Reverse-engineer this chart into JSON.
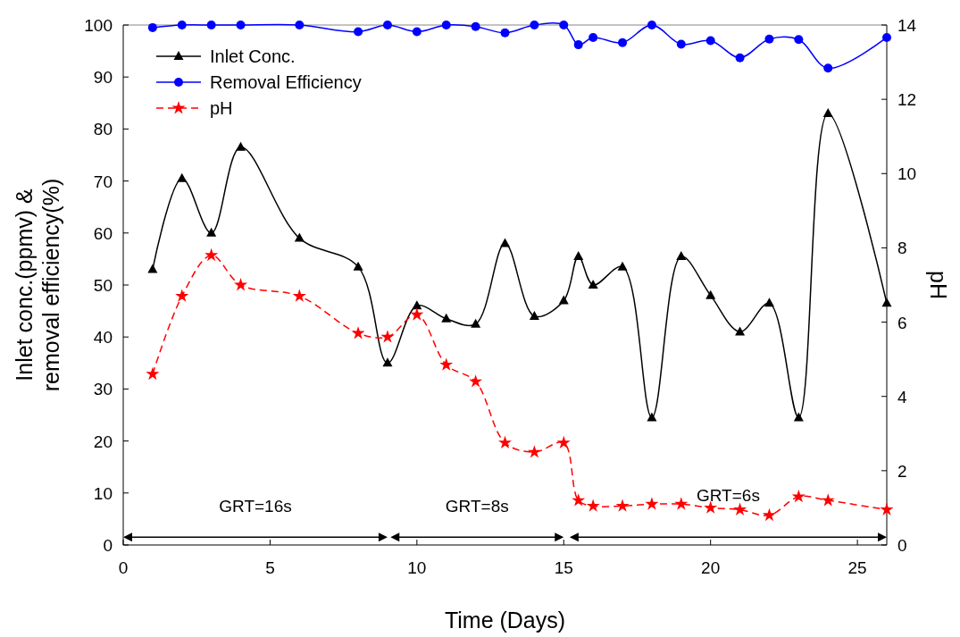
{
  "chart_data": {
    "type": "line",
    "xlabel": "Time (Days)",
    "ylabel": "Inlet conc.(ppmv) & removal efficiency(%)",
    "y2label": "pH",
    "x": [
      1,
      2,
      3,
      4,
      6,
      8,
      9,
      10,
      11,
      12,
      13,
      14,
      15,
      15.5,
      16,
      17,
      18,
      19,
      20,
      21,
      22,
      23,
      24,
      26
    ],
    "series": [
      {
        "name": "Inlet Conc.",
        "color": "#000000",
        "marker": "triangle",
        "line_style": "solid",
        "values": [
          53,
          70.5,
          60,
          76.5,
          59,
          53.5,
          35,
          46,
          43.5,
          42.5,
          58,
          44,
          47,
          55.5,
          50,
          53.5,
          24.5,
          55.5,
          48,
          41,
          46.5,
          24.5,
          83,
          46.5
        ]
      },
      {
        "name": "Removal Efficiency",
        "color": "#0000ff",
        "marker": "circle",
        "line_style": "solid",
        "values": [
          99.5,
          100,
          100,
          100,
          100,
          98.7,
          100,
          98.7,
          100,
          99.7,
          98.5,
          100,
          100,
          96.2,
          97.6,
          96.6,
          100,
          96.3,
          97,
          93.7,
          97.3,
          97.2,
          91.7,
          97.6
        ]
      },
      {
        "name": "pH",
        "color": "#ff0000",
        "marker": "star",
        "line_style": "dashed",
        "axis": "y2",
        "values": [
          4.6,
          6.7,
          7.8,
          7.0,
          6.7,
          5.7,
          5.6,
          6.2,
          4.85,
          4.4,
          2.75,
          2.5,
          2.75,
          1.2,
          1.05,
          1.05,
          1.1,
          1.1,
          1.0,
          0.95,
          0.8,
          1.3,
          1.2,
          0.95
        ]
      }
    ],
    "xlim": [
      0,
      26
    ],
    "xticks": [
      0,
      5,
      10,
      15,
      20,
      25
    ],
    "ylim": [
      0,
      100
    ],
    "yticks": [
      0,
      10,
      20,
      30,
      40,
      50,
      60,
      70,
      80,
      90,
      100
    ],
    "y2lim": [
      0,
      14
    ],
    "y2ticks": [
      0,
      2,
      4,
      6,
      8,
      10,
      12,
      14
    ],
    "legend": "top left",
    "grid": false,
    "annotations": [
      "GRT=16s",
      "GRT=8s",
      "GRT=6s"
    ]
  }
}
